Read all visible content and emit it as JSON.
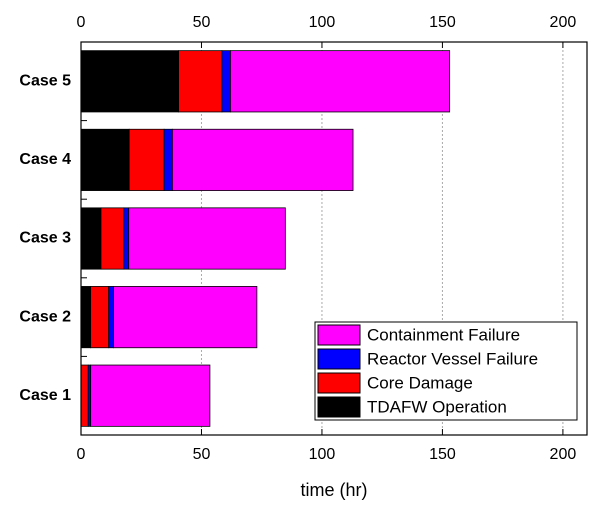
{
  "chart_data": {
    "type": "stacked-bar-horizontal",
    "x_label": "time (hr)",
    "categories": [
      "Case 1",
      "Case 2",
      "Case 3",
      "Case 4",
      "Case 5"
    ],
    "series": [
      {
        "name": "TDAFW Operation",
        "color": "#000000",
        "values": [
          0,
          4,
          8.3,
          20,
          40.5
        ]
      },
      {
        "name": "Core Damage",
        "color": "#ff0000",
        "values": [
          3,
          7.5,
          9.5,
          14.5,
          18
        ]
      },
      {
        "name": "Reactor Vessel Failure",
        "color": "#0000ff",
        "values": [
          1,
          2,
          2,
          3.4,
          3.5
        ]
      },
      {
        "name": "Containment Failure",
        "color": "#ff00ff",
        "values": [
          49.5,
          59.5,
          65,
          75,
          91
        ]
      }
    ],
    "xlim": [
      0,
      210
    ],
    "xticks": [
      0,
      50,
      100,
      150,
      200
    ],
    "grid": true
  }
}
